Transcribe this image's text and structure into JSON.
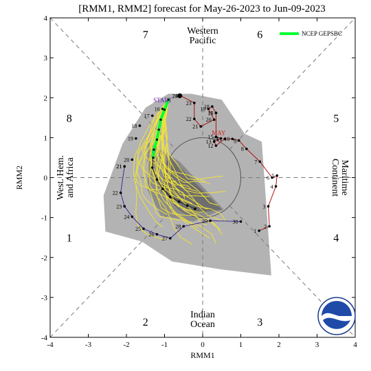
{
  "chart_data": {
    "type": "scatter",
    "title": "[RMM1, RMM2] forecast for May-26-2023 to Jun-09-2023",
    "xlabel": "RMM1",
    "ylabel": "RMM2",
    "xlim": [
      -4,
      4
    ],
    "ylim": [
      -4,
      4
    ],
    "x_ticks": [
      -4,
      -3,
      -2,
      -1,
      0,
      1,
      2,
      3,
      4
    ],
    "y_ticks": [
      -4,
      -3,
      -2,
      -1,
      0,
      1,
      2,
      3,
      4
    ],
    "legend": {
      "label": "NCEP GEPSBC",
      "color": "#00ff33",
      "position": "top-right"
    },
    "phases": [
      {
        "label": "1",
        "x": -3.5,
        "y": -1.5
      },
      {
        "label": "2",
        "x": -1.5,
        "y": -3.6
      },
      {
        "label": "3",
        "x": 1.5,
        "y": -3.6
      },
      {
        "label": "4",
        "x": 3.5,
        "y": -1.5
      },
      {
        "label": "5",
        "x": 3.5,
        "y": 1.5
      },
      {
        "label": "6",
        "x": 1.5,
        "y": 3.6
      },
      {
        "label": "7",
        "x": -1.5,
        "y": 3.6
      },
      {
        "label": "8",
        "x": -3.5,
        "y": 1.5
      }
    ],
    "regions": [
      {
        "lines": [
          "Western",
          "Pacific"
        ],
        "x": 0,
        "y": 3.55,
        "rotate": 0
      },
      {
        "lines": [
          "Indian",
          "Ocean"
        ],
        "x": 0,
        "y": -3.55,
        "rotate": 0
      },
      {
        "lines": [
          "West. Hem.",
          "and Africa"
        ],
        "x": -3.6,
        "y": 0,
        "rotate": -90
      },
      {
        "lines": [
          "Maritime",
          "Continent"
        ],
        "x": 3.6,
        "y": 0,
        "rotate": 90
      }
    ],
    "annotations": [
      {
        "text": "START",
        "x": -1.05,
        "y": 1.88,
        "color": "#6622aa"
      },
      {
        "text": "MAY",
        "x": 0.42,
        "y": 1.07,
        "color": "#cc2222"
      }
    ],
    "observed_april": {
      "color": "#3a2a99",
      "points": [
        {
          "day": 21,
          "x": -2.05,
          "y": 0.28
        },
        {
          "day": 22,
          "x": -2.15,
          "y": -0.38
        },
        {
          "day": 23,
          "x": -2.05,
          "y": -0.72
        },
        {
          "day": 24,
          "x": -1.85,
          "y": -0.98
        },
        {
          "day": 25,
          "x": -1.55,
          "y": -1.28
        },
        {
          "day": 26,
          "x": -1.2,
          "y": -1.42
        },
        {
          "day": 27,
          "x": -0.85,
          "y": -1.52
        },
        {
          "day": 28,
          "x": -0.5,
          "y": -1.22
        },
        {
          "day": 29,
          "x": 0.2,
          "y": -1.08
        },
        {
          "day": 30,
          "x": 1.0,
          "y": -1.1
        }
      ]
    },
    "observed_may": {
      "color": "#aa1111",
      "points": [
        {
          "day": 1,
          "x": 1.48,
          "y": -1.33
        },
        {
          "day": 2,
          "x": 1.75,
          "y": -1.22
        },
        {
          "day": 3,
          "x": 1.72,
          "y": -0.72
        },
        {
          "day": 4,
          "x": 1.92,
          "y": -0.22
        },
        {
          "day": 5,
          "x": 1.95,
          "y": 0.05
        },
        {
          "day": 6,
          "x": 1.82,
          "y": 0.0
        },
        {
          "day": 7,
          "x": 1.5,
          "y": 0.4
        },
        {
          "day": 8,
          "x": 1.15,
          "y": 0.72
        },
        {
          "day": 9,
          "x": 0.95,
          "y": 0.93
        },
        {
          "day": 10,
          "x": 0.78,
          "y": 0.97
        },
        {
          "day": 11,
          "x": 0.58,
          "y": 0.97
        },
        {
          "day": 12,
          "x": 0.35,
          "y": 0.8
        },
        {
          "day": 13,
          "x": 0.3,
          "y": 0.9
        },
        {
          "day": 14,
          "x": 0.48,
          "y": 0.98
        },
        {
          "day": 15,
          "x": 0.35,
          "y": 1.02
        },
        {
          "day": 16,
          "x": 0.35,
          "y": 1.62
        },
        {
          "day": 17,
          "x": 0.35,
          "y": 1.62
        },
        {
          "day": 18,
          "x": 0.25,
          "y": 1.78
        },
        {
          "day": 19,
          "x": 0.15,
          "y": 1.72
        },
        {
          "day": 20,
          "x": 0.3,
          "y": 1.45
        },
        {
          "day": 21,
          "x": -0.05,
          "y": 1.28
        },
        {
          "day": 22,
          "x": -0.22,
          "y": 1.47
        },
        {
          "day": 23,
          "x": -0.22,
          "y": 1.87
        },
        {
          "day": 24,
          "x": -0.58,
          "y": 2.05
        },
        {
          "day": 25,
          "x": -0.58,
          "y": 2.05
        }
      ]
    },
    "forecast_start": {
      "x": -0.6,
      "y": 2.05
    },
    "forecast_days": [
      {
        "day": 16,
        "x": -1.05,
        "y": 1.72
      },
      {
        "day": 17,
        "x": -1.32,
        "y": 1.55
      },
      {
        "day": 18,
        "x": -1.65,
        "y": 1.3
      },
      {
        "day": 19,
        "x": -1.75,
        "y": 0.98
      },
      {
        "day": 20,
        "x": -1.85,
        "y": 0.45
      },
      {
        "day": 21,
        "x": -2.05,
        "y": 0.28
      }
    ],
    "ensemble_mean": {
      "color": "#00ff33",
      "points": [
        {
          "x": -0.9,
          "y": 1.95
        },
        {
          "x": -1.0,
          "y": 1.7
        },
        {
          "x": -1.1,
          "y": 1.45
        },
        {
          "x": -1.15,
          "y": 1.2
        },
        {
          "x": -1.2,
          "y": 0.95
        },
        {
          "x": -1.28,
          "y": 0.7
        },
        {
          "x": -1.3,
          "y": 0.5
        }
      ]
    },
    "mean_continuation": [
      {
        "x": -1.3,
        "y": 0.5
      },
      {
        "x": -1.32,
        "y": 0.25
      },
      {
        "x": -1.2,
        "y": -0.05
      },
      {
        "x": -1.05,
        "y": -0.28
      },
      {
        "x": -0.85,
        "y": -0.48
      },
      {
        "x": -0.62,
        "y": -0.6
      },
      {
        "x": -0.4,
        "y": -0.7
      },
      {
        "x": -0.2,
        "y": -0.78
      }
    ],
    "spread_outer": [
      {
        "x": -0.3,
        "y": 2.1
      },
      {
        "x": 0.5,
        "y": 1.95
      },
      {
        "x": 1.1,
        "y": 1.1
      },
      {
        "x": 1.55,
        "y": 0.9
      },
      {
        "x": 1.8,
        "y": -2.45
      },
      {
        "x": 0.5,
        "y": -2.3
      },
      {
        "x": -0.8,
        "y": -2.1
      },
      {
        "x": -1.6,
        "y": -1.6
      },
      {
        "x": -2.55,
        "y": -1.35
      },
      {
        "x": -2.6,
        "y": -0.45
      },
      {
        "x": -2.1,
        "y": 0.85
      },
      {
        "x": -1.5,
        "y": 1.75
      },
      {
        "x": -0.9,
        "y": 2.1
      }
    ],
    "spread_inner": [
      {
        "x": -1.45,
        "y": 0.9
      },
      {
        "x": -0.6,
        "y": 0.4
      },
      {
        "x": 0.55,
        "y": -0.8
      },
      {
        "x": -0.25,
        "y": -1.1
      },
      {
        "x": -1.1,
        "y": -0.95
      },
      {
        "x": -1.45,
        "y": -0.3
      }
    ],
    "spread_core": [
      {
        "x": -0.9,
        "y": 0.55
      },
      {
        "x": 0.5,
        "y": -0.8
      },
      {
        "x": -0.3,
        "y": -0.9
      },
      {
        "x": -1.1,
        "y": -0.35
      }
    ]
  }
}
